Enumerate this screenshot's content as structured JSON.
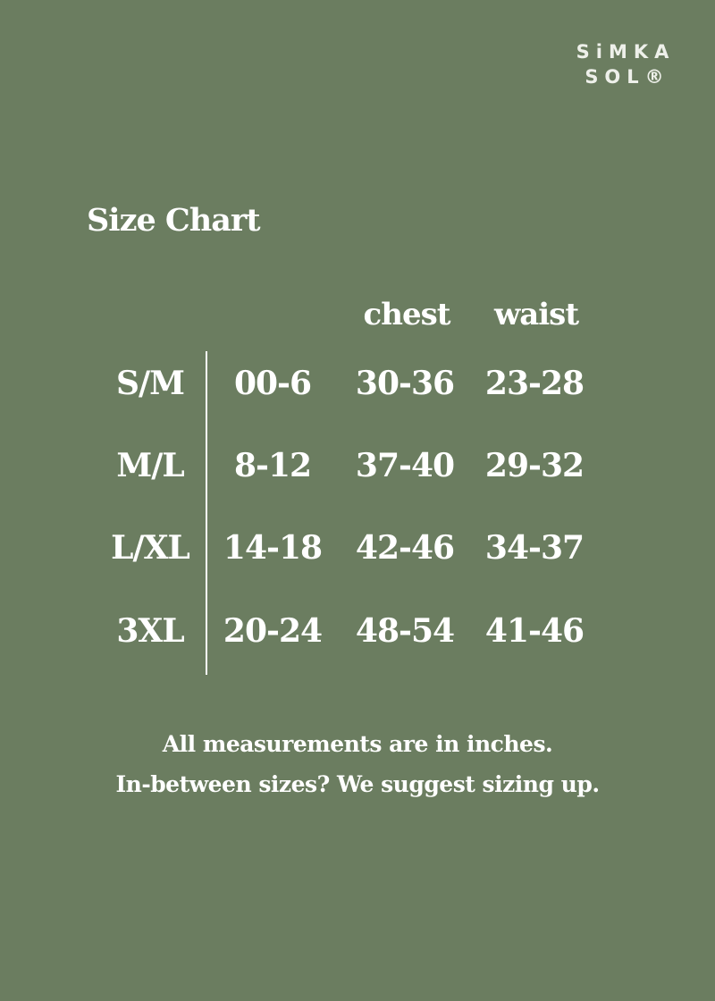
{
  "logo": {
    "line1": "SiMKA",
    "line2": "SOL®"
  },
  "title": "Size Chart",
  "headers": [
    "",
    "",
    "chest",
    "waist"
  ],
  "rows": [
    [
      "S/M",
      "00-6",
      "30-36",
      "23-28"
    ],
    [
      "M/L",
      "8-12",
      "37-40",
      "29-32"
    ],
    [
      "L/XL",
      "14-18",
      "42-46",
      "34-37"
    ],
    [
      "3XL",
      "20-24",
      "48-54",
      "41-46"
    ]
  ],
  "footer": {
    "line1": "All measurements are in inches.",
    "line2": "In-between sizes? We suggest sizing up."
  },
  "colors": {
    "background": "#6b7d60",
    "text": "#ffffff"
  }
}
